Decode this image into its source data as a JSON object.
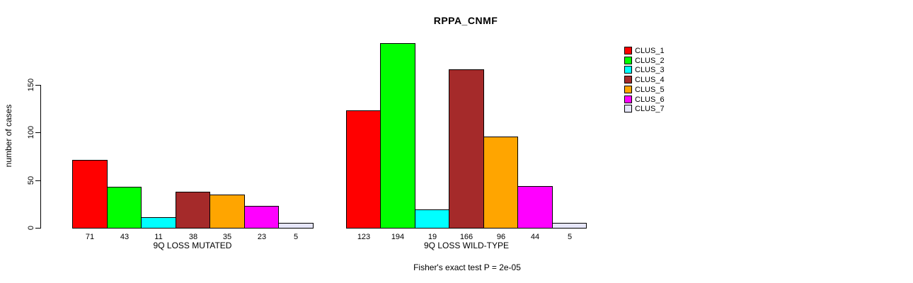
{
  "chart_data": {
    "type": "bar",
    "title": "RPPA_CNMF",
    "ylabel": "number of cases",
    "xlabel": "",
    "ylim": [
      0,
      150
    ],
    "yticks": [
      0,
      50,
      100,
      150
    ],
    "grid": false,
    "legend_position": "right",
    "categories": [
      "9Q LOSS MUTATED",
      "9Q LOSS WILD-TYPE"
    ],
    "series": [
      {
        "name": "CLUS_1",
        "color": "#FF0000",
        "values": [
          71,
          123
        ]
      },
      {
        "name": "CLUS_2",
        "color": "#00FF00",
        "values": [
          43,
          194
        ]
      },
      {
        "name": "CLUS_3",
        "color": "#00FFFF",
        "values": [
          11,
          19
        ]
      },
      {
        "name": "CLUS_4",
        "color": "#A52A2A",
        "values": [
          38,
          166
        ]
      },
      {
        "name": "CLUS_5",
        "color": "#FFA500",
        "values": [
          35,
          96
        ]
      },
      {
        "name": "CLUS_6",
        "color": "#FF00FF",
        "values": [
          23,
          44
        ]
      },
      {
        "name": "CLUS_7",
        "color": "#E6E6FA",
        "values": [
          5,
          5
        ]
      }
    ],
    "bar_value_labels": [
      [
        "71",
        "43",
        "11",
        "38",
        "35",
        "23",
        "5"
      ],
      [
        "123",
        "194",
        "19",
        "166",
        "96",
        "44",
        "5"
      ]
    ],
    "annotation": "Fisher's exact test P = 2e-05"
  }
}
